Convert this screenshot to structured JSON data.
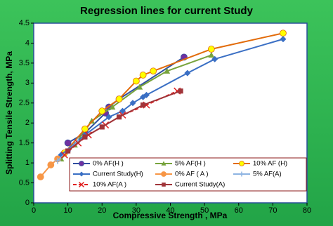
{
  "chart_data": {
    "type": "line",
    "title": "Regression lines for current Study",
    "x_label": "Compressive Strength , MPa",
    "y_label": "Splitting Tensile Strength, MPa",
    "xlim": [
      0,
      80
    ],
    "xticks": [
      0,
      10,
      20,
      30,
      40,
      50,
      60,
      70,
      80
    ],
    "ylim": [
      0,
      4.5
    ],
    "yticks": [
      0,
      0.5,
      1,
      1.5,
      2,
      2.5,
      3,
      3.5,
      4,
      4.5
    ],
    "grid": false,
    "series": [
      {
        "name": "0% AF(H )",
        "color": "#2f4fa0",
        "marker_color": "#7030a0",
        "marker": "circle",
        "dash": false,
        "x": [
          10,
          15,
          21,
          22,
          25,
          44
        ],
        "values": [
          1.5,
          1.75,
          2.25,
          2.4,
          2.6,
          3.65
        ]
      },
      {
        "name": "5% AF(H )",
        "color": "#77a33c",
        "marker_color": "#77a33c",
        "marker": "triangle",
        "dash": false,
        "x": [
          8,
          12,
          17,
          23,
          31,
          39,
          52
        ],
        "values": [
          1.1,
          1.45,
          2.05,
          2.4,
          2.9,
          3.3,
          3.7
        ]
      },
      {
        "name": "10% AF (H)",
        "color": "#e26b0a",
        "marker_color": "#ffff00",
        "marker": "circle",
        "dash": false,
        "x": [
          9,
          15,
          20,
          25,
          30,
          32,
          35,
          52,
          73
        ],
        "values": [
          1.25,
          1.85,
          2.3,
          2.6,
          3.05,
          3.2,
          3.3,
          3.85,
          4.25
        ]
      },
      {
        "name": "Current Study(H)",
        "color": "#3a6fc4",
        "marker_color": "#3a6fc4",
        "marker": "diamond",
        "dash": false,
        "x": [
          8,
          15,
          22,
          26,
          29,
          32,
          33,
          45,
          53,
          73
        ],
        "values": [
          1.2,
          1.7,
          2.15,
          2.3,
          2.5,
          2.65,
          2.7,
          3.25,
          3.6,
          4.1
        ]
      },
      {
        "name": "0% AF ( A )",
        "color": "#f79646",
        "marker_color": "#f79646",
        "marker": "circle",
        "dash": false,
        "x": [
          2,
          5,
          7
        ],
        "values": [
          0.65,
          0.95,
          1.1
        ]
      },
      {
        "name": "5% AF(A)",
        "color": "#8db4e2",
        "marker_color": "#8db4e2",
        "marker": "plus",
        "dash": false,
        "x": [
          7,
          10,
          13
        ],
        "values": [
          1.05,
          1.3,
          1.55
        ]
      },
      {
        "name": "10% AF(A )",
        "color": "#e02020",
        "marker_color": "#e02020",
        "marker": "x",
        "dash": true,
        "x": [
          9,
          13,
          16,
          21,
          26,
          33,
          42
        ],
        "values": [
          1.2,
          1.5,
          1.7,
          1.95,
          2.2,
          2.45,
          2.8
        ]
      },
      {
        "name": "Current Study(A)",
        "color": "#a0353a",
        "marker_color": "#a0353a",
        "marker": "square",
        "dash": false,
        "x": [
          10,
          15,
          20,
          25,
          32,
          43
        ],
        "values": [
          1.3,
          1.65,
          1.9,
          2.15,
          2.45,
          2.8
        ]
      }
    ]
  }
}
